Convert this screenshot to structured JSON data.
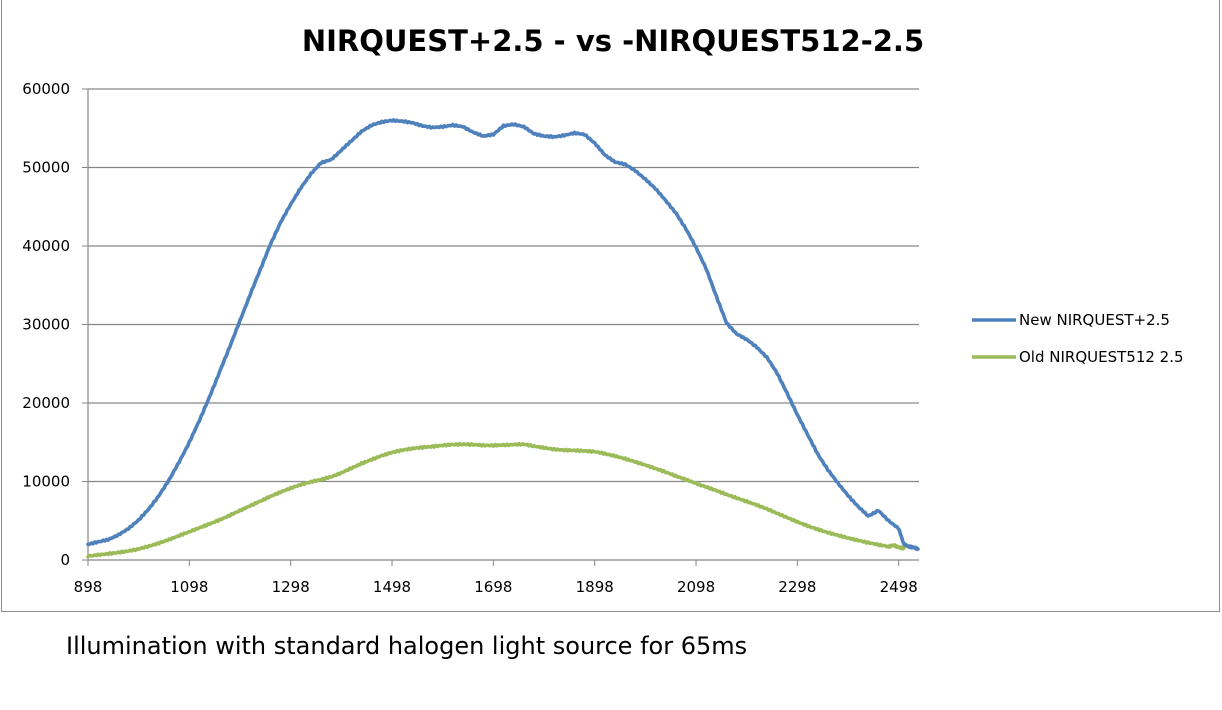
{
  "caption": "Illumination with standard halogen light source for 65ms",
  "chart_data": {
    "type": "line",
    "title": "NIRQUEST+2.5 - vs -NIRQUEST512-2.5",
    "xlabel": "",
    "ylabel": "",
    "xlim": [
      898,
      2538
    ],
    "ylim": [
      0,
      60000
    ],
    "x_ticks": [
      "898",
      "1098",
      "1298",
      "1498",
      "1698",
      "1898",
      "2098",
      "2298",
      "2498"
    ],
    "y_ticks": [
      "0",
      "10000",
      "20000",
      "30000",
      "40000",
      "50000",
      "60000"
    ],
    "grid": "horizontal",
    "legend_position": "right",
    "series": [
      {
        "name": "New NIRQUEST+2.5",
        "color": "#4f81bd",
        "x": [
          898,
          918,
          938,
          958,
          978,
          998,
          1018,
          1038,
          1058,
          1078,
          1098,
          1118,
          1138,
          1158,
          1178,
          1198,
          1218,
          1238,
          1258,
          1278,
          1298,
          1318,
          1338,
          1358,
          1378,
          1398,
          1418,
          1438,
          1458,
          1478,
          1498,
          1518,
          1538,
          1558,
          1578,
          1598,
          1618,
          1638,
          1658,
          1678,
          1698,
          1718,
          1738,
          1758,
          1778,
          1798,
          1818,
          1838,
          1858,
          1878,
          1898,
          1918,
          1938,
          1958,
          1978,
          1998,
          2018,
          2038,
          2058,
          2078,
          2098,
          2118,
          2138,
          2158,
          2178,
          2198,
          2218,
          2238,
          2258,
          2278,
          2298,
          2318,
          2338,
          2358,
          2378,
          2398,
          2418,
          2438,
          2458,
          2478,
          2498,
          2508,
          2518,
          2528,
          2536
        ],
        "values": [
          2000,
          2300,
          2600,
          3200,
          4000,
          5100,
          6500,
          8200,
          10200,
          12500,
          15000,
          17800,
          20800,
          24000,
          27200,
          30500,
          33800,
          37000,
          40200,
          43000,
          45300,
          47400,
          49200,
          50600,
          51000,
          52200,
          53400,
          54600,
          55400,
          55800,
          56000,
          55900,
          55700,
          55300,
          55100,
          55200,
          55400,
          55200,
          54500,
          54000,
          54200,
          55300,
          55500,
          55200,
          54300,
          54000,
          53900,
          54100,
          54400,
          54200,
          53100,
          51600,
          50700,
          50400,
          49600,
          48500,
          47300,
          45800,
          44200,
          42200,
          39800,
          37100,
          33600,
          30200,
          28800,
          28100,
          27100,
          25800,
          23800,
          21200,
          18500,
          16000,
          13500,
          11500,
          9800,
          8200,
          6800,
          5600,
          6300,
          5000,
          4000,
          2000,
          1700,
          1600,
          1400
        ],
        "note_on_last_points": ""
      },
      {
        "name": "Old NIRQUEST512 2.5",
        "color": "#9bbb59",
        "x": [
          898,
          918,
          938,
          958,
          978,
          998,
          1018,
          1038,
          1058,
          1078,
          1098,
          1118,
          1138,
          1158,
          1178,
          1198,
          1218,
          1238,
          1258,
          1278,
          1298,
          1318,
          1338,
          1358,
          1378,
          1398,
          1418,
          1438,
          1458,
          1478,
          1498,
          1518,
          1538,
          1558,
          1578,
          1598,
          1618,
          1638,
          1658,
          1678,
          1698,
          1718,
          1738,
          1758,
          1778,
          1798,
          1818,
          1838,
          1858,
          1878,
          1898,
          1918,
          1938,
          1958,
          1978,
          1998,
          2018,
          2038,
          2058,
          2078,
          2098,
          2118,
          2138,
          2158,
          2178,
          2198,
          2218,
          2238,
          2258,
          2278,
          2298,
          2318,
          2338,
          2358,
          2378,
          2398,
          2418,
          2438,
          2458,
          2478,
          2488,
          2498,
          2508
        ],
        "values": [
          500,
          650,
          800,
          950,
          1150,
          1400,
          1750,
          2150,
          2600,
          3100,
          3600,
          4100,
          4600,
          5100,
          5700,
          6300,
          6900,
          7500,
          8100,
          8650,
          9150,
          9600,
          9950,
          10250,
          10600,
          11100,
          11700,
          12300,
          12800,
          13300,
          13700,
          14000,
          14200,
          14350,
          14450,
          14600,
          14700,
          14750,
          14700,
          14600,
          14600,
          14650,
          14700,
          14750,
          14500,
          14300,
          14100,
          14000,
          13950,
          13900,
          13800,
          13550,
          13250,
          12900,
          12500,
          12100,
          11650,
          11200,
          10700,
          10250,
          9750,
          9300,
          8850,
          8350,
          7900,
          7450,
          7000,
          6500,
          5950,
          5400,
          4850,
          4350,
          3900,
          3500,
          3150,
          2800,
          2500,
          2200,
          1950,
          1700,
          1900,
          1600,
          1500
        ]
      }
    ]
  }
}
